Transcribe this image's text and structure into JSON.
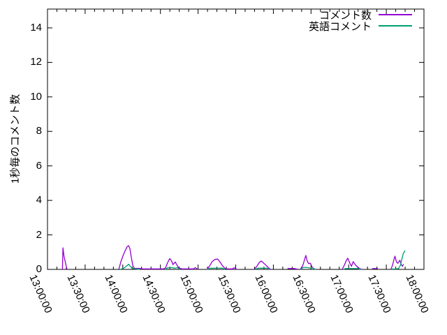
{
  "chart_data": {
    "type": "line",
    "title": "",
    "xlabel": "",
    "ylabel": "1秒毎のコメント数",
    "grid": false,
    "legend_position": "top-right-inside",
    "x_axis": {
      "unit": "time",
      "range_minutes": [
        0,
        300
      ],
      "tick_interval_minutes": 30,
      "minor_divisions": 4,
      "tick_labels": [
        "13:00:00",
        "13:30:00",
        "14:00:00",
        "14:30:00",
        "15:00:00",
        "15:30:00",
        "16:00:00",
        "16:30:00",
        "17:00:00",
        "17:30:00",
        "18:00:00"
      ]
    },
    "y_axis": {
      "range": [
        0,
        15.09
      ],
      "ticks": [
        0,
        2,
        4,
        6,
        8,
        10,
        12,
        14
      ],
      "tick_labels": [
        "0",
        "2",
        "4",
        "6",
        "8",
        "10",
        "12",
        "14"
      ]
    },
    "series": [
      {
        "name": "コメント数",
        "color": "#9400d3",
        "segments": [
          [
            [
              11.9,
              0
            ],
            [
              12.3,
              1.25
            ],
            [
              13.2,
              0.75
            ],
            [
              14.4,
              0.35
            ],
            [
              15.6,
              0
            ]
          ],
          [
            [
              56.8,
              0
            ],
            [
              58.5,
              0.45
            ],
            [
              60.5,
              0.85
            ],
            [
              62,
              1.1
            ],
            [
              63.5,
              1.32
            ],
            [
              64.6,
              1.38
            ],
            [
              65.7,
              1.2
            ],
            [
              66.8,
              0.7
            ],
            [
              68,
              0.22
            ],
            [
              69.3,
              0.06
            ],
            [
              73.5,
              0.06
            ],
            [
              75.5,
              0.03
            ],
            [
              92.5,
              0.03
            ],
            [
              94,
              0.08
            ],
            [
              95.5,
              0.35
            ],
            [
              97.4,
              0.63
            ],
            [
              98.8,
              0.5
            ],
            [
              100,
              0.28
            ],
            [
              101.8,
              0.43
            ],
            [
              103.2,
              0.25
            ],
            [
              104.6,
              0.08
            ],
            [
              107,
              0.03
            ],
            [
              112,
              0.03
            ],
            [
              116.5,
              0.03
            ],
            [
              117.8,
              0.1
            ],
            [
              119.2,
              0.03
            ],
            [
              120,
              0
            ]
          ],
          [
            [
              127.2,
              0
            ],
            [
              129.2,
              0.2
            ],
            [
              131.2,
              0.45
            ],
            [
              133.4,
              0.58
            ],
            [
              135.6,
              0.6
            ],
            [
              137.6,
              0.42
            ],
            [
              139.6,
              0.2
            ],
            [
              141.6,
              0.05
            ],
            [
              143,
              0.03
            ],
            [
              147.5,
              0.03
            ],
            [
              148.8,
              0.1
            ],
            [
              150.2,
              0.03
            ],
            [
              151.2,
              0
            ]
          ],
          [
            [
              165,
              0
            ],
            [
              167,
              0.2
            ],
            [
              168.8,
              0.4
            ],
            [
              170.3,
              0.49
            ],
            [
              172,
              0.38
            ],
            [
              174,
              0.25
            ],
            [
              176.3,
              0.08
            ],
            [
              177.8,
              0
            ]
          ],
          [
            [
              191.3,
              0.05
            ],
            [
              196.8,
              0.05
            ],
            [
              198.5,
              0.02
            ],
            [
              199.5,
              0.02
            ]
          ],
          [
            [
              201.4,
              0
            ],
            [
              203.3,
              0.2
            ],
            [
              204.6,
              0.5
            ],
            [
              205.9,
              0.81
            ],
            [
              206.9,
              0.5
            ],
            [
              208.1,
              0.33
            ],
            [
              209.5,
              0.35
            ],
            [
              211,
              0.12
            ],
            [
              212.6,
              0.03
            ],
            [
              214,
              0
            ]
          ],
          [
            [
              234.8,
              0
            ],
            [
              236.6,
              0.25
            ],
            [
              238,
              0.5
            ],
            [
              239.3,
              0.65
            ],
            [
              240.8,
              0.38
            ],
            [
              242.2,
              0.18
            ],
            [
              243.6,
              0.45
            ],
            [
              245,
              0.3
            ],
            [
              246.4,
              0.18
            ],
            [
              248,
              0.08
            ],
            [
              249.3,
              0.03
            ],
            [
              250.6,
              0
            ]
          ],
          [
            [
              258.8,
              0.05
            ],
            [
              263.3,
              0.05
            ]
          ],
          [
            [
              273.6,
              0
            ],
            [
              275,
              0.25
            ],
            [
              276,
              0.55
            ],
            [
              276.9,
              0.77
            ],
            [
              278,
              0.45
            ],
            [
              279.2,
              0.35
            ],
            [
              280.8,
              0.53
            ],
            [
              281.8,
              0.3
            ],
            [
              282.8,
              0.18
            ],
            [
              283.8,
              0.3
            ]
          ]
        ]
      },
      {
        "name": "英語コメント",
        "color": "#009e73",
        "segments": [
          [
            [
              58,
              0
            ],
            [
              61,
              0.08
            ],
            [
              63,
              0.2
            ],
            [
              64.6,
              0.3
            ],
            [
              66,
              0.18
            ],
            [
              67.5,
              0.06
            ],
            [
              70.5,
              0.03
            ],
            [
              73.5,
              0
            ]
          ],
          [
            [
              94,
              0
            ],
            [
              95.5,
              0.09
            ],
            [
              99,
              0.1
            ],
            [
              101.5,
              0.07
            ],
            [
              103.5,
              0.1
            ],
            [
              105.5,
              0
            ]
          ],
          [
            [
              127.5,
              0
            ],
            [
              129.5,
              0.07
            ],
            [
              139.5,
              0.07
            ],
            [
              141.5,
              0
            ]
          ],
          [
            [
              165.8,
              0
            ],
            [
              167.5,
              0.07
            ],
            [
              175,
              0.07
            ],
            [
              177,
              0
            ]
          ],
          [
            [
              201.7,
              0
            ],
            [
              203.5,
              0.1
            ],
            [
              206,
              0.12
            ],
            [
              209,
              0.08
            ],
            [
              211.5,
              0.08
            ],
            [
              213.5,
              0
            ]
          ],
          [
            [
              235.8,
              0
            ],
            [
              237.3,
              0.05
            ],
            [
              247.5,
              0.05
            ],
            [
              249.5,
              0
            ]
          ],
          [
            [
              274,
              0.02
            ],
            [
              277.5,
              0.03
            ],
            [
              279.8,
              0.05
            ],
            [
              281.3,
              0.25
            ],
            [
              282.4,
              0.6
            ],
            [
              283.4,
              0.9
            ],
            [
              284.9,
              1.1
            ]
          ]
        ]
      }
    ]
  }
}
